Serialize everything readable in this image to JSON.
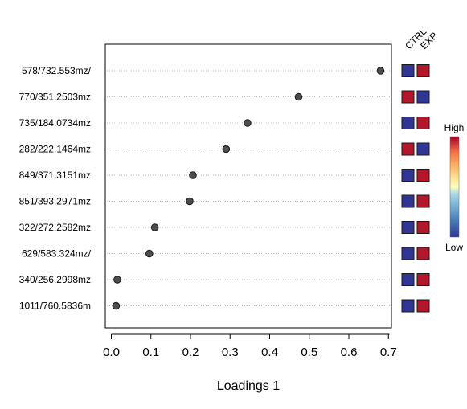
{
  "chart_data": {
    "type": "scatter",
    "title": "",
    "xlabel": "Loadings 1",
    "ylabel": "",
    "xlim": [
      -0.02,
      0.71
    ],
    "x_ticks": [
      "0.0",
      "0.1",
      "0.2",
      "0.3",
      "0.4",
      "0.5",
      "0.6",
      "0.7"
    ],
    "grid": "dotted horizontal lines per feature",
    "categories": [
      "578/732.553mz/",
      "770/351.2503mz",
      "735/184.0734mz",
      "282/222.1464mz",
      "849/371.3151mz",
      "851/393.2971mz",
      "322/272.2582mz",
      "629/583.324mz/",
      "340/256.2998mz",
      "1011/760.5836m"
    ],
    "values": [
      0.68,
      0.473,
      0.344,
      0.29,
      0.206,
      0.198,
      0.11,
      0.096,
      0.015,
      0.012
    ],
    "heatmap": {
      "columns": [
        "CTRL",
        "EXP"
      ],
      "levels": [
        [
          "low",
          "high"
        ],
        [
          "high",
          "low"
        ],
        [
          "low",
          "high"
        ],
        [
          "high",
          "low"
        ],
        [
          "low",
          "high"
        ],
        [
          "low",
          "high"
        ],
        [
          "low",
          "high"
        ],
        [
          "low",
          "high"
        ],
        [
          "low",
          "high"
        ],
        [
          "low",
          "high"
        ]
      ]
    },
    "colorbar": {
      "high_label": "High",
      "low_label": "Low"
    },
    "colors": {
      "high": "#b2182b",
      "low": "#313695",
      "point_fill": "#4d4d4d",
      "point_stroke": "#1a1a1a",
      "gridline": "#bdbdbd"
    }
  }
}
